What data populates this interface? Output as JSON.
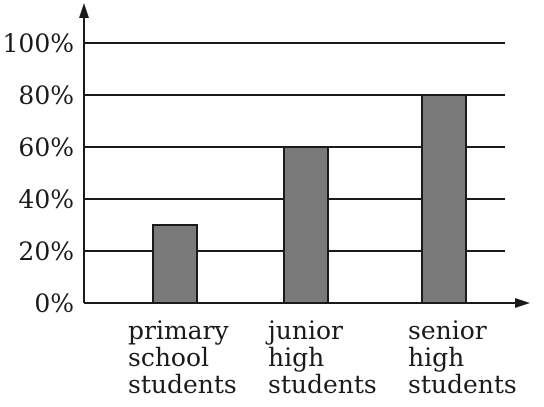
{
  "chart_data": {
    "type": "bar",
    "categories": [
      [
        "primary",
        "school",
        "students"
      ],
      [
        "junior",
        "high",
        "students"
      ],
      [
        "senior",
        "high",
        "students"
      ]
    ],
    "values": [
      30,
      60,
      80
    ],
    "title": "",
    "xlabel": "",
    "ylabel": "",
    "ylim": [
      0,
      100
    ],
    "yticks": [
      0,
      20,
      40,
      60,
      80,
      100
    ],
    "ytick_labels": [
      "0%",
      "20%",
      "40%",
      "60%",
      "80%",
      "100%"
    ],
    "grid": true,
    "legend": "none",
    "colors": {
      "bar": "#7a7a7a",
      "line": "#1a1a1a"
    }
  }
}
